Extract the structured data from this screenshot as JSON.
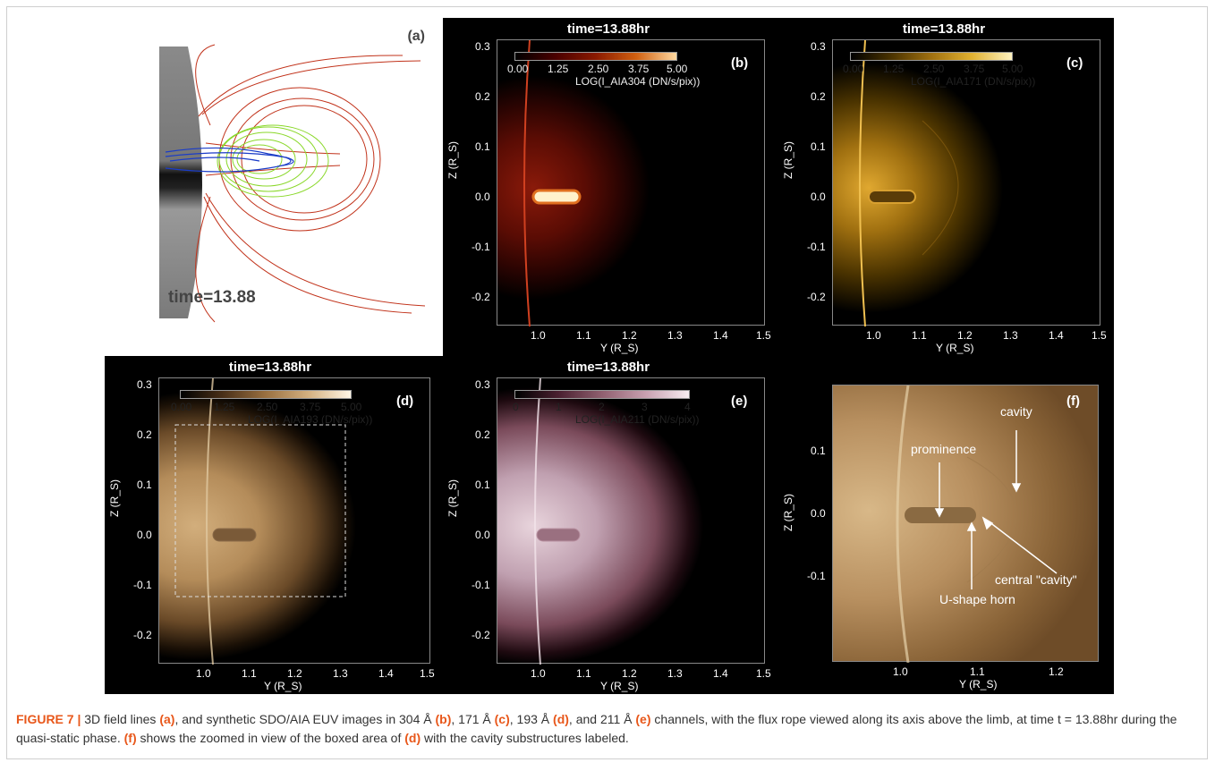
{
  "figure": {
    "panels": {
      "a": {
        "label": "(a)",
        "time_label": "time=13.88"
      },
      "b": {
        "label": "(b)",
        "time": "time=13.88hr",
        "cb_ticks": [
          "0.00",
          "1.25",
          "2.50",
          "3.75",
          "5.00"
        ],
        "cb_title": "LOG(I_AIA304 (DN/s/pix))",
        "x_ticks": [
          "1.0",
          "1.1",
          "1.2",
          "1.3",
          "1.4",
          "1.5"
        ],
        "y_ticks": [
          "0.3",
          "0.2",
          "0.1",
          "0.0",
          "-0.1",
          "-0.2"
        ],
        "xlabel": "Y (R_S)",
        "ylabel": "Z (R_S)",
        "colormap": [
          "#000000",
          "#4a0000",
          "#8a1a00",
          "#d06010",
          "#ffd9a0"
        ]
      },
      "c": {
        "label": "(c)",
        "time": "time=13.88hr",
        "cb_ticks": [
          "0.00",
          "1.25",
          "2.50",
          "3.75",
          "5.00"
        ],
        "cb_title": "LOG(I_AIA171 (DN/s/pix))",
        "x_ticks": [
          "1.0",
          "1.1",
          "1.2",
          "1.3",
          "1.4",
          "1.5"
        ],
        "y_ticks": [
          "0.3",
          "0.2",
          "0.1",
          "0.0",
          "-0.1",
          "-0.2"
        ],
        "xlabel": "Y (R_S)",
        "ylabel": "Z (R_S)",
        "colormap": [
          "#000000",
          "#4a3300",
          "#a07010",
          "#e0b030",
          "#fff3c0"
        ]
      },
      "d": {
        "label": "(d)",
        "time": "time=13.88hr",
        "cb_ticks": [
          "0.00",
          "1.25",
          "2.50",
          "3.75",
          "5.00"
        ],
        "cb_title": "LOG(I_AIA193 (DN/s/pix))",
        "x_ticks": [
          "1.0",
          "1.1",
          "1.2",
          "1.3",
          "1.4",
          "1.5"
        ],
        "y_ticks": [
          "0.3",
          "0.2",
          "0.1",
          "0.0",
          "-0.1",
          "-0.2"
        ],
        "xlabel": "Y (R_S)",
        "ylabel": "Z (R_S)",
        "colormap": [
          "#000000",
          "#4a3018",
          "#9a7040",
          "#d4b080",
          "#fff6e6"
        ]
      },
      "e": {
        "label": "(e)",
        "time": "time=13.88hr",
        "cb_ticks": [
          "0",
          "1",
          "2",
          "3",
          "4"
        ],
        "cb_title": "LOG(I_AIA211 (DN/s/pix))",
        "x_ticks": [
          "1.0",
          "1.1",
          "1.2",
          "1.3",
          "1.4",
          "1.5"
        ],
        "y_ticks": [
          "0.3",
          "0.2",
          "0.1",
          "0.0",
          "-0.1",
          "-0.2"
        ],
        "xlabel": "Y (R_S)",
        "ylabel": "Z (R_S)",
        "colormap": [
          "#000000",
          "#4a2030",
          "#906070",
          "#c8a0b0",
          "#f7eef2"
        ]
      },
      "f": {
        "label": "(f)",
        "x_ticks": [
          "1.0",
          "1.1",
          "1.2"
        ],
        "y_ticks": [
          "0.1",
          "0.0",
          "-0.1"
        ],
        "xlabel": "Y (R_S)",
        "ylabel": "Z (R_S)",
        "annotations": {
          "prominence": "prominence",
          "cavity": "cavity",
          "central": "central \"cavity\"",
          "horn": "U-shape horn"
        }
      }
    },
    "caption": {
      "fig_label": "FIGURE 7 |",
      "seg1": " 3D field lines ",
      "ref_a": "(a)",
      "seg2": ", and synthetic SDO/AIA EUV images in 304 Å ",
      "ref_b": "(b)",
      "seg3": ", 171 Å ",
      "ref_c": "(c)",
      "seg4": ", 193 Å ",
      "ref_d": "(d)",
      "seg5": ", and 211 Å ",
      "ref_e": "(e)",
      "seg6": " channels, with the flux rope viewed along its axis above the limb, at time t = 13.88hr during the quasi-static phase. ",
      "ref_f": "(f)",
      "seg7": " shows the zoomed in view of the boxed area of ",
      "ref_d2": "(d)",
      "seg8": " with the cavity substructures labeled."
    }
  }
}
